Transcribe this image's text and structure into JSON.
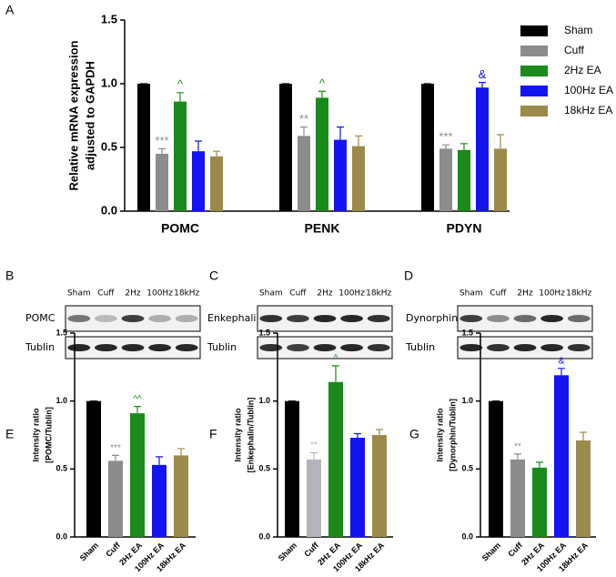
{
  "panel_labels": [
    "A",
    "B",
    "C",
    "D",
    "E",
    "F",
    "G"
  ],
  "blots": [
    {
      "lanes": [
        "Sham",
        "Cuff",
        "2Hz",
        "100Hz",
        "18kHz"
      ],
      "rows": [
        "POMC",
        "Tublin"
      ]
    },
    {
      "lanes": [
        "Sham",
        "Cuff",
        "2Hz",
        "100Hz",
        "18kHz"
      ],
      "rows": [
        "Enkephalin",
        "Tublin"
      ]
    },
    {
      "lanes": [
        "Sham",
        "Cuff",
        "2Hz",
        "100Hz",
        "18kHz"
      ],
      "rows": [
        "Dynorphin A",
        "Tublin"
      ]
    }
  ],
  "chart_data": [
    {
      "type": "bar",
      "y_label": [
        "Relative mRNA expression",
        "adjusted to GAPDH"
      ],
      "categories": [
        "POMC",
        "PENK",
        "PDYN"
      ],
      "series": [
        {
          "name": "Sham",
          "color": "#000000",
          "values": [
            1.0,
            1.0,
            1.0
          ],
          "errors": [
            0,
            0,
            0
          ],
          "annotations": [
            null,
            null,
            null
          ]
        },
        {
          "name": "Cuff",
          "color": "#8c8c8c",
          "values": [
            0.45,
            0.59,
            0.49
          ],
          "errors": [
            0.04,
            0.07,
            0.03
          ],
          "annotations": [
            "***",
            "**",
            "***"
          ]
        },
        {
          "name": "2Hz EA",
          "color": "#1a8a1a",
          "values": [
            0.86,
            0.89,
            0.48
          ],
          "errors": [
            0.07,
            0.05,
            0.05
          ],
          "annotations": [
            "^",
            "^",
            null
          ]
        },
        {
          "name": "100Hz EA",
          "color": "#1414f0",
          "values": [
            0.47,
            0.56,
            0.97
          ],
          "errors": [
            0.08,
            0.1,
            0.04
          ],
          "annotations": [
            null,
            null,
            "&"
          ]
        },
        {
          "name": "18kHz EA",
          "color": "#9c8a4a",
          "values": [
            0.43,
            0.51,
            0.49
          ],
          "errors": [
            0.04,
            0.08,
            0.11
          ],
          "annotations": [
            null,
            null,
            null
          ]
        }
      ],
      "ylim": [
        0,
        1.5
      ],
      "yticks": [
        {
          "value": 0,
          "label": "0.0"
        },
        0.5,
        {
          "value": 1,
          "label": "1.0"
        },
        1.5
      ],
      "legend": "right"
    },
    {
      "type": "bar",
      "y_label": [
        "Intensity ratio",
        "[POMC/Tublin]"
      ],
      "categories": [
        "Sham",
        "Cuff",
        "2Hz EA",
        "100Hz EA",
        "18kHz EA"
      ],
      "values": [
        1.0,
        0.56,
        0.91,
        0.53,
        0.6
      ],
      "errors": [
        0,
        0.04,
        0.05,
        0.06,
        0.05
      ],
      "colors": [
        "#000000",
        "#8c8c8c",
        "#1a8a1a",
        "#1414f0",
        "#9c8a4a"
      ],
      "annotations": [
        null,
        "***",
        "^^",
        null,
        null
      ],
      "ylim": [
        0,
        1.5
      ],
      "yticks": [
        {
          "value": 0,
          "label": "0.0"
        },
        0.5,
        {
          "value": 1,
          "label": "1.0"
        },
        1.5
      ]
    },
    {
      "type": "bar",
      "y_label": [
        "Intensity ratio",
        "[Enkephalin/Tublin]"
      ],
      "categories": [
        "Sham",
        "Cuff",
        "2Hz EA",
        "100Hz EA",
        "18kHz EA"
      ],
      "values": [
        1.0,
        0.57,
        1.14,
        0.73,
        0.75
      ],
      "errors": [
        0,
        0.05,
        0.12,
        0.03,
        0.04
      ],
      "colors": [
        "#000000",
        "#b4b4bc",
        "#1a8a1a",
        "#1414f0",
        "#9c8a4a"
      ],
      "annotations": [
        null,
        "**",
        "^",
        null,
        null
      ],
      "ylim": [
        0,
        1.5
      ],
      "yticks": [
        {
          "value": 0,
          "label": "0.0"
        },
        0.5,
        {
          "value": 1,
          "label": "1.0"
        },
        1.5
      ]
    },
    {
      "type": "bar",
      "y_label": [
        "Intensity ratio",
        "[Dynorphin/Tublin]"
      ],
      "categories": [
        "Sham",
        "Cuff",
        "2Hz EA",
        "100Hz EA",
        "18kHz EA"
      ],
      "values": [
        1.0,
        0.57,
        0.51,
        1.19,
        0.71
      ],
      "errors": [
        0,
        0.04,
        0.04,
        0.05,
        0.06
      ],
      "colors": [
        "#000000",
        "#8c8c8c",
        "#1a8a1a",
        "#1414f0",
        "#9c8a4a"
      ],
      "annotations": [
        null,
        "**",
        null,
        "&",
        null
      ],
      "ylim": [
        0,
        1.5
      ],
      "yticks": [
        {
          "value": 0,
          "label": "0.0"
        },
        0.5,
        {
          "value": 1,
          "label": "1.0"
        },
        1.5
      ]
    }
  ]
}
